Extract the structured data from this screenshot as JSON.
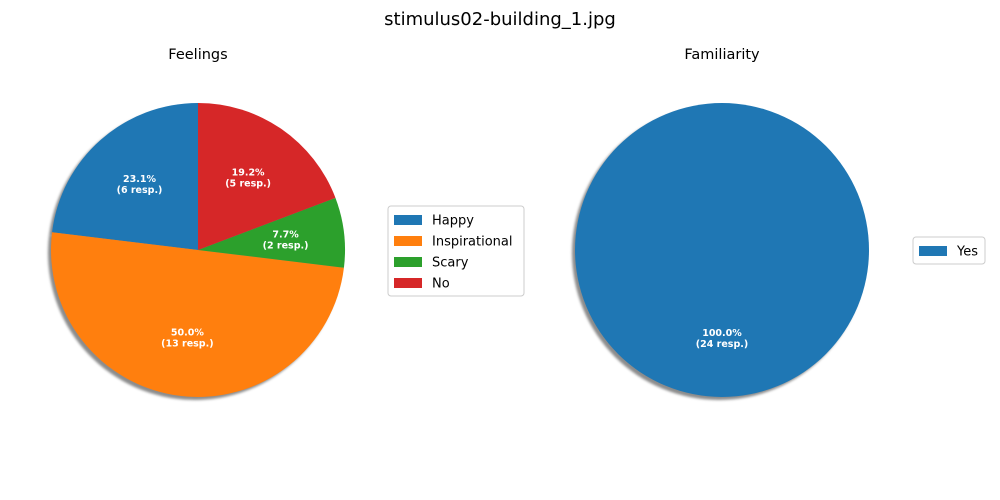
{
  "figure_title": "stimulus02-building_1.jpg",
  "chart_data": [
    {
      "type": "pie",
      "title": "Feelings",
      "labels": [
        "Happy",
        "Inspirational",
        "Scary",
        "No"
      ],
      "values": [
        6,
        13,
        2,
        5
      ],
      "colors": [
        "#1f77b4",
        "#ff7f0e",
        "#2ca02c",
        "#d62728"
      ],
      "slice_labels": [
        [
          "23.1%",
          "(6 resp.)"
        ],
        [
          "50.0%",
          "(13 resp.)"
        ],
        [
          "7.7%",
          "(2 resp.)"
        ],
        [
          "19.2%",
          "(5 resp.)"
        ]
      ],
      "start_angle_deg": 90,
      "direction": "counterclockwise",
      "shadow": true,
      "legend_position": "right"
    },
    {
      "type": "pie",
      "title": "Familiarity",
      "labels": [
        "Yes"
      ],
      "values": [
        24
      ],
      "colors": [
        "#1f77b4"
      ],
      "slice_labels": [
        [
          "100.0%",
          "(24 resp.)"
        ]
      ],
      "start_angle_deg": 90,
      "direction": "counterclockwise",
      "shadow": true,
      "legend_position": "right"
    }
  ]
}
